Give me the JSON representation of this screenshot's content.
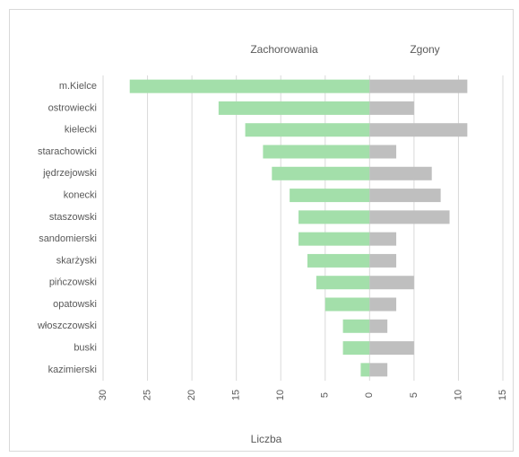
{
  "chart_data": {
    "type": "butterfly-bar",
    "categories": [
      "m.Kielce",
      "ostrowiecki",
      "kielecki",
      "starachowicki",
      "jędrzejowski",
      "konecki",
      "staszowski",
      "sandomierski",
      "skarżyski",
      "pińczowski",
      "opatowski",
      "włoszczowski",
      "buski",
      "kazimierski"
    ],
    "series": [
      {
        "name": "Zachorowania",
        "color": "#a3dfaa",
        "values": [
          -27,
          -17,
          -14,
          -12,
          -11,
          -9,
          -8,
          -8,
          -7,
          -6,
          -5,
          -3,
          -3,
          -1
        ]
      },
      {
        "name": "Zgony",
        "color": "#bfbfbf",
        "values": [
          11,
          5,
          11,
          3,
          7,
          8,
          9,
          3,
          3,
          5,
          3,
          2,
          5,
          2
        ]
      }
    ],
    "xlabel": "Liczba",
    "xlim": [
      -30,
      15
    ],
    "xticks": [
      {
        "value": -30,
        "label": "30"
      },
      {
        "value": -25,
        "label": "25"
      },
      {
        "value": -20,
        "label": "20"
      },
      {
        "value": -15,
        "label": "15"
      },
      {
        "value": -10,
        "label": "10"
      },
      {
        "value": -5,
        "label": "5"
      },
      0,
      5,
      10,
      15
    ],
    "grid": true
  }
}
